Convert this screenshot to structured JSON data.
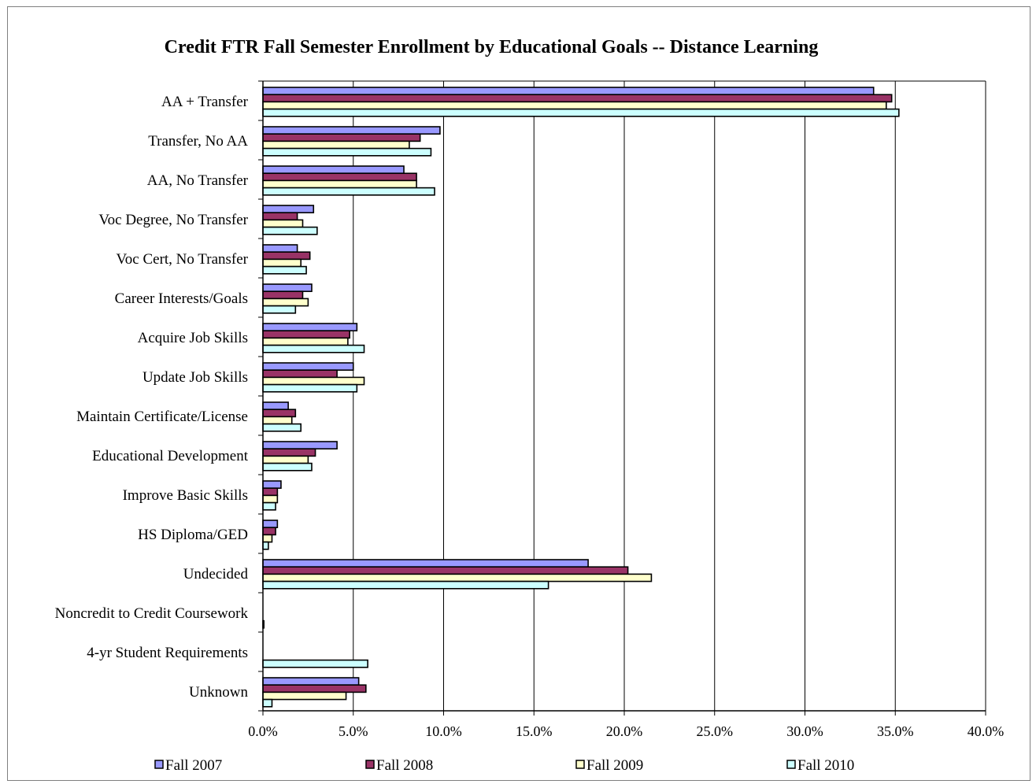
{
  "chart_data": {
    "type": "bar",
    "orientation": "horizontal",
    "title": "Credit FTR Fall Semester Enrollment by Educational Goals -- Distance Learning",
    "xlabel": "",
    "ylabel": "",
    "xlim": [
      0,
      40
    ],
    "x_ticks": [
      "0.0%",
      "5.0%",
      "10.0%",
      "15.0%",
      "20.0%",
      "25.0%",
      "30.0%",
      "35.0%",
      "40.0%"
    ],
    "x_tick_values": [
      0,
      5,
      10,
      15,
      20,
      25,
      30,
      35,
      40
    ],
    "grid": "vertical major gridlines",
    "legend_position": "bottom",
    "categories": [
      "AA + Transfer",
      "Transfer, No AA",
      "AA, No Transfer",
      "Voc Degree, No Transfer",
      "Voc Cert, No Transfer",
      "Career Interests/Goals",
      "Acquire Job Skills",
      "Update Job Skills",
      "Maintain Certificate/License",
      "Educational Development",
      "Improve Basic Skills",
      "HS Diploma/GED",
      "Undecided",
      "Noncredit to Credit Coursework",
      "4-yr Student Requirements",
      "Unknown"
    ],
    "series": [
      {
        "name": "Fall 2007",
        "color": "#9999FF",
        "values": [
          33.8,
          9.8,
          7.8,
          2.8,
          1.9,
          2.7,
          5.2,
          5.0,
          1.4,
          4.1,
          1.0,
          0.8,
          18.0,
          0.0,
          0.0,
          5.3
        ]
      },
      {
        "name": "Fall 2008",
        "color": "#993366",
        "values": [
          34.8,
          8.7,
          8.5,
          1.9,
          2.6,
          2.2,
          4.8,
          4.1,
          1.8,
          2.9,
          0.8,
          0.7,
          20.2,
          0.0,
          0.0,
          5.7
        ]
      },
      {
        "name": "Fall 2009",
        "color": "#FFFFCC",
        "values": [
          34.5,
          8.1,
          8.5,
          2.2,
          2.1,
          2.5,
          4.7,
          5.6,
          1.6,
          2.5,
          0.8,
          0.5,
          21.5,
          0.0,
          0.0,
          4.6
        ]
      },
      {
        "name": "Fall 2010",
        "color": "#CCFFFF",
        "values": [
          35.2,
          9.3,
          9.5,
          3.0,
          2.4,
          1.8,
          5.6,
          5.2,
          2.1,
          2.7,
          0.7,
          0.3,
          15.8,
          0.05,
          5.8,
          0.5
        ]
      }
    ]
  }
}
